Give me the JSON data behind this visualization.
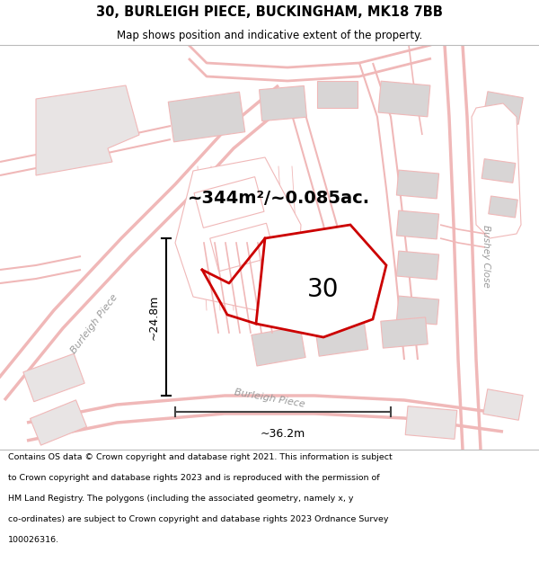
{
  "title": "30, BURLEIGH PIECE, BUCKINGHAM, MK18 7BB",
  "subtitle": "Map shows position and indicative extent of the property.",
  "area_text": "~344m²/~0.085ac.",
  "label_30": "30",
  "dim_width": "~36.2m",
  "dim_height": "~24.8m",
  "street_label_left": "Burleigh Piece",
  "street_label_bottom": "Burleigh Piece",
  "street_label_right": "Bushey Close",
  "map_bg": "#f7f4f4",
  "footer_lines": [
    "Contains OS data © Crown copyright and database right 2021. This information is subject",
    "to Crown copyright and database rights 2023 and is reproduced with the permission of",
    "HM Land Registry. The polygons (including the associated geometry, namely x, y",
    "co-ordinates) are subject to Crown copyright and database rights 2023 Ordnance Survey",
    "100026316."
  ],
  "pink": "#f0b8b8",
  "red": "#cc0000",
  "gray_fill": "#d8d5d5",
  "white_fill": "#ffffff",
  "light_gray": "#e8e4e4"
}
